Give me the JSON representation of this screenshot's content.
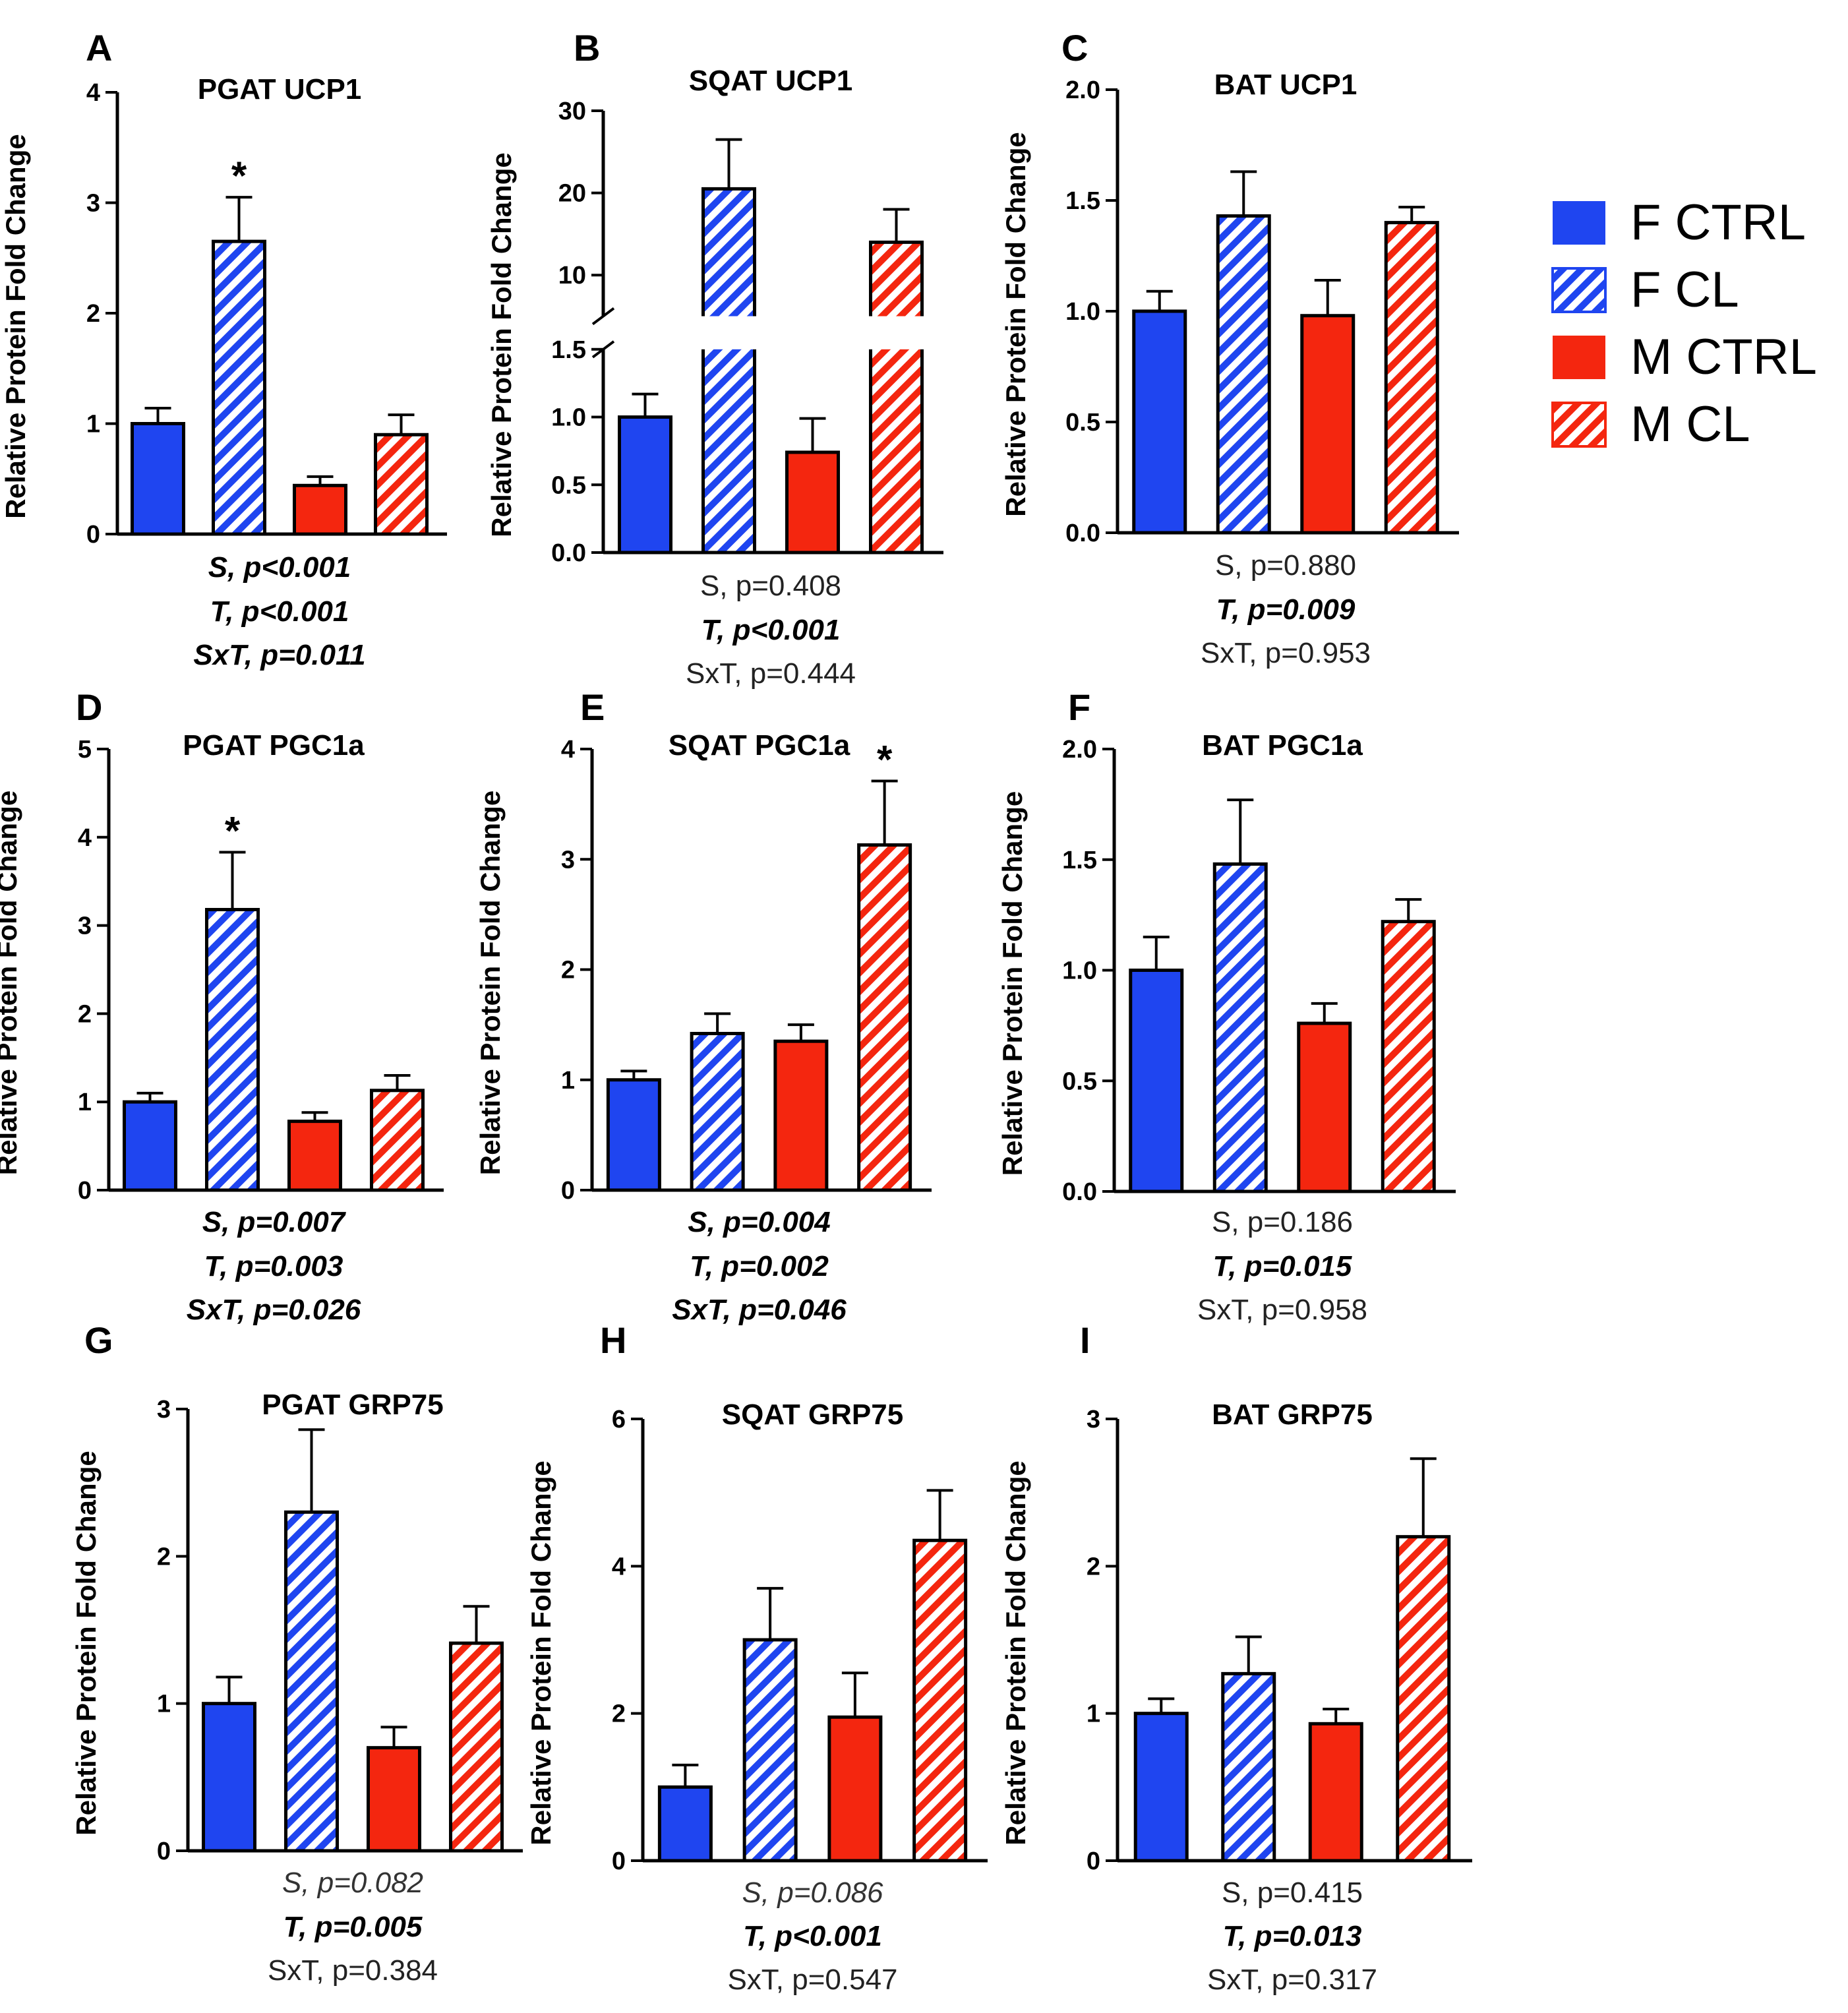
{
  "colors": {
    "female": "#1f45f0",
    "male": "#f4260f",
    "outline": "#000000",
    "hatch_bg": "#ffffff"
  },
  "legend": {
    "items": [
      {
        "label": "F CTRL",
        "color": "#1f45f0",
        "hatched": false
      },
      {
        "label": "F CL",
        "color": "#1f45f0",
        "hatched": true
      },
      {
        "label": "M CTRL",
        "color": "#f4260f",
        "hatched": false
      },
      {
        "label": "M CL",
        "color": "#f4260f",
        "hatched": true
      }
    ]
  },
  "chart_data": [
    {
      "letter": "A",
      "type": "bar",
      "title": "PGAT UCP1",
      "ylabel": "Relative Protein Fold Change",
      "categories": [
        "F CTRL",
        "F CL",
        "M CTRL",
        "M CL"
      ],
      "values": [
        1.0,
        2.65,
        0.44,
        0.9
      ],
      "errors": [
        0.14,
        0.4,
        0.08,
        0.18
      ],
      "ylim": [
        0,
        4
      ],
      "yticks": [
        0,
        1,
        2,
        3,
        4
      ],
      "ytick_labels": [
        "0",
        "1",
        "2",
        "3",
        "4"
      ],
      "significance": [
        {
          "bar": 1,
          "mark": "*"
        }
      ],
      "stats": [
        {
          "text": "S, p<0.001",
          "style": "bold-italic"
        },
        {
          "text": "T, p<0.001",
          "style": "bold-italic"
        },
        {
          "text": "SxT, p=0.011",
          "style": "bold-italic"
        }
      ]
    },
    {
      "letter": "B",
      "type": "bar",
      "title": "SQAT UCP1",
      "ylabel": "Relative Protein Fold Change",
      "categories": [
        "F CTRL",
        "F CL",
        "M CTRL",
        "M CL"
      ],
      "values": [
        1.0,
        20.5,
        0.74,
        14.0
      ],
      "errors": [
        0.17,
        6.0,
        0.25,
        4.0
      ],
      "broken_axis": {
        "lower": [
          0,
          1.5
        ],
        "upper": [
          5,
          30
        ]
      },
      "yticks": [
        0,
        0.5,
        1.0,
        1.5,
        10,
        20,
        30
      ],
      "ytick_labels": [
        "0.0",
        "0.5",
        "1.0",
        "1.5",
        "10",
        "20",
        "30"
      ],
      "significance": [],
      "stats": [
        {
          "text": "S, p=0.408",
          "style": "normal"
        },
        {
          "text": "T, p<0.001",
          "style": "bold-italic"
        },
        {
          "text": "SxT, p=0.444",
          "style": "normal"
        }
      ]
    },
    {
      "letter": "C",
      "type": "bar",
      "title": "BAT UCP1",
      "ylabel": "Relative Protein Fold Change",
      "categories": [
        "F CTRL",
        "F CL",
        "M CTRL",
        "M CL"
      ],
      "values": [
        1.0,
        1.43,
        0.98,
        1.4
      ],
      "errors": [
        0.09,
        0.2,
        0.16,
        0.07
      ],
      "ylim": [
        0,
        2.0
      ],
      "yticks": [
        0,
        0.5,
        1.0,
        1.5,
        2.0
      ],
      "ytick_labels": [
        "0.0",
        "0.5",
        "1.0",
        "1.5",
        "2.0"
      ],
      "significance": [],
      "stats": [
        {
          "text": "S, p=0.880",
          "style": "normal"
        },
        {
          "text": "T, p=0.009",
          "style": "bold-italic"
        },
        {
          "text": "SxT, p=0.953",
          "style": "normal"
        }
      ]
    },
    {
      "letter": "D",
      "type": "bar",
      "title": "PGAT PGC1a",
      "ylabel": "Relative Protein Fold Change",
      "categories": [
        "F CTRL",
        "F CL",
        "M CTRL",
        "M CL"
      ],
      "values": [
        1.0,
        3.18,
        0.78,
        1.13
      ],
      "errors": [
        0.1,
        0.65,
        0.1,
        0.17
      ],
      "ylim": [
        0,
        5
      ],
      "yticks": [
        0,
        1,
        2,
        3,
        4,
        5
      ],
      "ytick_labels": [
        "0",
        "1",
        "2",
        "3",
        "4",
        "5"
      ],
      "significance": [
        {
          "bar": 1,
          "mark": "*"
        }
      ],
      "stats": [
        {
          "text": "S, p=0.007",
          "style": "bold-italic"
        },
        {
          "text": "T, p=0.003",
          "style": "bold-italic"
        },
        {
          "text": "SxT, p=0.026",
          "style": "bold-italic"
        }
      ]
    },
    {
      "letter": "E",
      "type": "bar",
      "title": "SQAT PGC1a",
      "ylabel": "Relative Protein Fold Change",
      "categories": [
        "F CTRL",
        "F CL",
        "M CTRL",
        "M CL"
      ],
      "values": [
        1.0,
        1.42,
        1.35,
        3.13
      ],
      "errors": [
        0.08,
        0.18,
        0.15,
        0.58
      ],
      "ylim": [
        0,
        4
      ],
      "yticks": [
        0,
        1,
        2,
        3,
        4
      ],
      "ytick_labels": [
        "0",
        "1",
        "2",
        "3",
        "4"
      ],
      "significance": [
        {
          "bar": 3,
          "mark": "*"
        }
      ],
      "stats": [
        {
          "text": "S, p=0.004",
          "style": "bold-italic"
        },
        {
          "text": "T, p=0.002",
          "style": "bold-italic"
        },
        {
          "text": "SxT, p=0.046",
          "style": "bold-italic"
        }
      ]
    },
    {
      "letter": "F",
      "type": "bar",
      "title": "BAT PGC1a",
      "ylabel": "Relative Protein Fold Change",
      "categories": [
        "F CTRL",
        "F CL",
        "M CTRL",
        "M CL"
      ],
      "values": [
        1.0,
        1.48,
        0.76,
        1.22
      ],
      "errors": [
        0.15,
        0.29,
        0.09,
        0.1
      ],
      "ylim": [
        0,
        2.0
      ],
      "yticks": [
        0,
        0.5,
        1.0,
        1.5,
        2.0
      ],
      "ytick_labels": [
        "0.0",
        "0.5",
        "1.0",
        "1.5",
        "2.0"
      ],
      "significance": [],
      "stats": [
        {
          "text": "S, p=0.186",
          "style": "normal"
        },
        {
          "text": "T, p=0.015",
          "style": "bold-italic"
        },
        {
          "text": "SxT, p=0.958",
          "style": "normal"
        }
      ]
    },
    {
      "letter": "G",
      "type": "bar",
      "title": "PGAT GRP75",
      "ylabel": "Relative Protein Fold Change",
      "categories": [
        "F CTRL",
        "F CL",
        "M CTRL",
        "M CL"
      ],
      "values": [
        1.0,
        2.3,
        0.7,
        1.41
      ],
      "errors": [
        0.18,
        0.56,
        0.14,
        0.25
      ],
      "ylim": [
        0,
        3
      ],
      "yticks": [
        0,
        1,
        2,
        3
      ],
      "ytick_labels": [
        "0",
        "1",
        "2",
        "3"
      ],
      "significance": [],
      "stats": [
        {
          "text": "S, p=0.082",
          "style": "italic"
        },
        {
          "text": "T, p=0.005",
          "style": "bold-italic"
        },
        {
          "text": "SxT, p=0.384",
          "style": "normal"
        }
      ]
    },
    {
      "letter": "H",
      "type": "bar",
      "title": "SQAT GRP75",
      "ylabel": "Relative Protein Fold Change",
      "categories": [
        "F CTRL",
        "F CL",
        "M CTRL",
        "M CL"
      ],
      "values": [
        1.0,
        3.0,
        1.95,
        4.35
      ],
      "errors": [
        0.3,
        0.7,
        0.6,
        0.68
      ],
      "ylim": [
        0,
        6
      ],
      "yticks": [
        0,
        2,
        4,
        6
      ],
      "ytick_labels": [
        "0",
        "2",
        "4",
        "6"
      ],
      "significance": [],
      "stats": [
        {
          "text": "S, p=0.086",
          "style": "italic"
        },
        {
          "text": "T, p<0.001",
          "style": "bold-italic"
        },
        {
          "text": "SxT, p=0.547",
          "style": "normal"
        }
      ]
    },
    {
      "letter": "I",
      "type": "bar",
      "title": "BAT GRP75",
      "ylabel": "Relative Protein Fold Change",
      "categories": [
        "F CTRL",
        "F CL",
        "M CTRL",
        "M CL"
      ],
      "values": [
        1.0,
        1.27,
        0.93,
        2.2
      ],
      "errors": [
        0.1,
        0.25,
        0.1,
        0.53
      ],
      "ylim": [
        0,
        3
      ],
      "yticks": [
        0,
        1,
        2,
        3
      ],
      "ytick_labels": [
        "0",
        "1",
        "2",
        "3"
      ],
      "significance": [],
      "stats": [
        {
          "text": "S, p=0.415",
          "style": "normal"
        },
        {
          "text": "T, p=0.013",
          "style": "bold-italic"
        },
        {
          "text": "SxT, p=0.317",
          "style": "normal"
        }
      ]
    }
  ]
}
